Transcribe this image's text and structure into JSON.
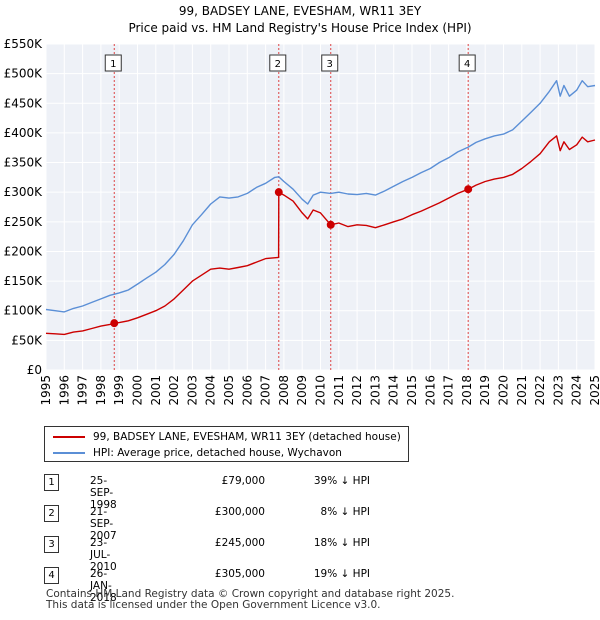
{
  "chart_data": {
    "type": "line",
    "title": "99, BADSEY LANE, EVESHAM, WR11 3EY",
    "subtitle": "Price paid vs. HM Land Registry's House Price Index (HPI)",
    "xlim": [
      1995,
      2025
    ],
    "ylim": [
      0,
      550000
    ],
    "x_ticks": [
      1995,
      1996,
      1997,
      1998,
      1999,
      2000,
      2001,
      2002,
      2003,
      2004,
      2005,
      2006,
      2007,
      2008,
      2009,
      2010,
      2011,
      2012,
      2013,
      2014,
      2015,
      2016,
      2017,
      2018,
      2019,
      2020,
      2021,
      2022,
      2023,
      2024,
      2025
    ],
    "y_ticks": [
      {
        "value": 0,
        "label": "£0"
      },
      {
        "value": 50000,
        "label": "£50K"
      },
      {
        "value": 100000,
        "label": "£100K"
      },
      {
        "value": 150000,
        "label": "£150K"
      },
      {
        "value": 200000,
        "label": "£200K"
      },
      {
        "value": 250000,
        "label": "£250K"
      },
      {
        "value": 300000,
        "label": "£300K"
      },
      {
        "value": 350000,
        "label": "£350K"
      },
      {
        "value": 400000,
        "label": "£400K"
      },
      {
        "value": 450000,
        "label": "£450K"
      },
      {
        "value": 500000,
        "label": "£500K"
      },
      {
        "value": 550000,
        "label": "£550K"
      }
    ],
    "grid": true,
    "series": [
      {
        "name": "99, BADSEY LANE, EVESHAM, WR11 3EY (detached house)",
        "color": "#cc0000",
        "points": [
          [
            1995.0,
            62000
          ],
          [
            1995.5,
            61000
          ],
          [
            1996.0,
            60000
          ],
          [
            1996.5,
            64000
          ],
          [
            1997.0,
            66000
          ],
          [
            1997.5,
            70000
          ],
          [
            1998.0,
            74000
          ],
          [
            1998.5,
            77000
          ],
          [
            1998.73,
            79000
          ],
          [
            1999.0,
            80000
          ],
          [
            1999.5,
            83000
          ],
          [
            2000.0,
            88000
          ],
          [
            2000.5,
            94000
          ],
          [
            2001.0,
            100000
          ],
          [
            2001.5,
            108000
          ],
          [
            2002.0,
            120000
          ],
          [
            2002.5,
            135000
          ],
          [
            2003.0,
            150000
          ],
          [
            2003.5,
            160000
          ],
          [
            2004.0,
            170000
          ],
          [
            2004.5,
            172000
          ],
          [
            2005.0,
            170000
          ],
          [
            2005.5,
            173000
          ],
          [
            2006.0,
            176000
          ],
          [
            2006.5,
            182000
          ],
          [
            2007.0,
            188000
          ],
          [
            2007.71,
            190000
          ],
          [
            2007.72,
            300000
          ],
          [
            2008.0,
            295000
          ],
          [
            2008.5,
            285000
          ],
          [
            2009.0,
            265000
          ],
          [
            2009.3,
            255000
          ],
          [
            2009.6,
            270000
          ],
          [
            2010.0,
            265000
          ],
          [
            2010.56,
            245000
          ],
          [
            2011.0,
            248000
          ],
          [
            2011.5,
            242000
          ],
          [
            2012.0,
            245000
          ],
          [
            2012.5,
            244000
          ],
          [
            2013.0,
            240000
          ],
          [
            2013.5,
            245000
          ],
          [
            2014.0,
            250000
          ],
          [
            2014.5,
            255000
          ],
          [
            2015.0,
            262000
          ],
          [
            2015.5,
            268000
          ],
          [
            2016.0,
            275000
          ],
          [
            2016.5,
            282000
          ],
          [
            2017.0,
            290000
          ],
          [
            2017.5,
            298000
          ],
          [
            2018.07,
            305000
          ],
          [
            2018.5,
            312000
          ],
          [
            2019.0,
            318000
          ],
          [
            2019.5,
            322000
          ],
          [
            2020.0,
            325000
          ],
          [
            2020.5,
            330000
          ],
          [
            2021.0,
            340000
          ],
          [
            2021.5,
            352000
          ],
          [
            2022.0,
            365000
          ],
          [
            2022.5,
            385000
          ],
          [
            2022.9,
            395000
          ],
          [
            2023.1,
            370000
          ],
          [
            2023.3,
            385000
          ],
          [
            2023.6,
            372000
          ],
          [
            2024.0,
            380000
          ],
          [
            2024.3,
            393000
          ],
          [
            2024.6,
            385000
          ],
          [
            2025.0,
            388000
          ]
        ]
      },
      {
        "name": "HPI: Average price, detached house, Wychavon",
        "color": "#5b8fd6",
        "points": [
          [
            1995.0,
            102000
          ],
          [
            1995.5,
            100000
          ],
          [
            1996.0,
            98000
          ],
          [
            1996.5,
            104000
          ],
          [
            1997.0,
            108000
          ],
          [
            1997.5,
            114000
          ],
          [
            1998.0,
            120000
          ],
          [
            1998.5,
            126000
          ],
          [
            1999.0,
            130000
          ],
          [
            1999.5,
            135000
          ],
          [
            2000.0,
            145000
          ],
          [
            2000.5,
            155000
          ],
          [
            2001.0,
            165000
          ],
          [
            2001.5,
            178000
          ],
          [
            2002.0,
            195000
          ],
          [
            2002.5,
            218000
          ],
          [
            2003.0,
            245000
          ],
          [
            2003.5,
            262000
          ],
          [
            2004.0,
            280000
          ],
          [
            2004.5,
            292000
          ],
          [
            2005.0,
            290000
          ],
          [
            2005.5,
            292000
          ],
          [
            2006.0,
            298000
          ],
          [
            2006.5,
            308000
          ],
          [
            2007.0,
            315000
          ],
          [
            2007.5,
            325000
          ],
          [
            2007.72,
            326000
          ],
          [
            2008.0,
            318000
          ],
          [
            2008.5,
            305000
          ],
          [
            2009.0,
            288000
          ],
          [
            2009.3,
            280000
          ],
          [
            2009.6,
            295000
          ],
          [
            2010.0,
            300000
          ],
          [
            2010.56,
            298000
          ],
          [
            2011.0,
            300000
          ],
          [
            2011.5,
            297000
          ],
          [
            2012.0,
            296000
          ],
          [
            2012.5,
            298000
          ],
          [
            2013.0,
            295000
          ],
          [
            2013.5,
            302000
          ],
          [
            2014.0,
            310000
          ],
          [
            2014.5,
            318000
          ],
          [
            2015.0,
            325000
          ],
          [
            2015.5,
            333000
          ],
          [
            2016.0,
            340000
          ],
          [
            2016.5,
            350000
          ],
          [
            2017.0,
            358000
          ],
          [
            2017.5,
            368000
          ],
          [
            2018.07,
            376000
          ],
          [
            2018.5,
            384000
          ],
          [
            2019.0,
            390000
          ],
          [
            2019.5,
            395000
          ],
          [
            2020.0,
            398000
          ],
          [
            2020.5,
            405000
          ],
          [
            2021.0,
            420000
          ],
          [
            2021.5,
            435000
          ],
          [
            2022.0,
            450000
          ],
          [
            2022.5,
            470000
          ],
          [
            2022.9,
            488000
          ],
          [
            2023.1,
            462000
          ],
          [
            2023.3,
            480000
          ],
          [
            2023.6,
            462000
          ],
          [
            2024.0,
            472000
          ],
          [
            2024.3,
            488000
          ],
          [
            2024.6,
            478000
          ],
          [
            2025.0,
            480000
          ]
        ]
      }
    ],
    "transactions": [
      {
        "id": "1",
        "date": "25-SEP-1998",
        "x": 1998.73,
        "price": 79000,
        "price_label": "£79,000",
        "hpi": "39% ↓ HPI"
      },
      {
        "id": "2",
        "date": "21-SEP-2007",
        "x": 2007.72,
        "price": 300000,
        "price_label": "£300,000",
        "hpi": "8% ↓ HPI"
      },
      {
        "id": "3",
        "date": "23-JUL-2010",
        "x": 2010.56,
        "price": 245000,
        "price_label": "£245,000",
        "hpi": "18% ↓ HPI"
      },
      {
        "id": "4",
        "date": "26-JAN-2018",
        "x": 2018.07,
        "price": 305000,
        "price_label": "£305,000",
        "hpi": "19% ↓ HPI"
      }
    ]
  },
  "legend": {
    "property_label": "99, BADSEY LANE, EVESHAM, WR11 3EY (detached house)",
    "hpi_label": "HPI: Average price, detached house, Wychavon",
    "property_color": "#cc0000",
    "hpi_color": "#5b8fd6"
  },
  "footer": {
    "line1": "Contains HM Land Registry data © Crown copyright and database right 2025.",
    "line2": "This data is licensed under the Open Government Licence v3.0."
  }
}
